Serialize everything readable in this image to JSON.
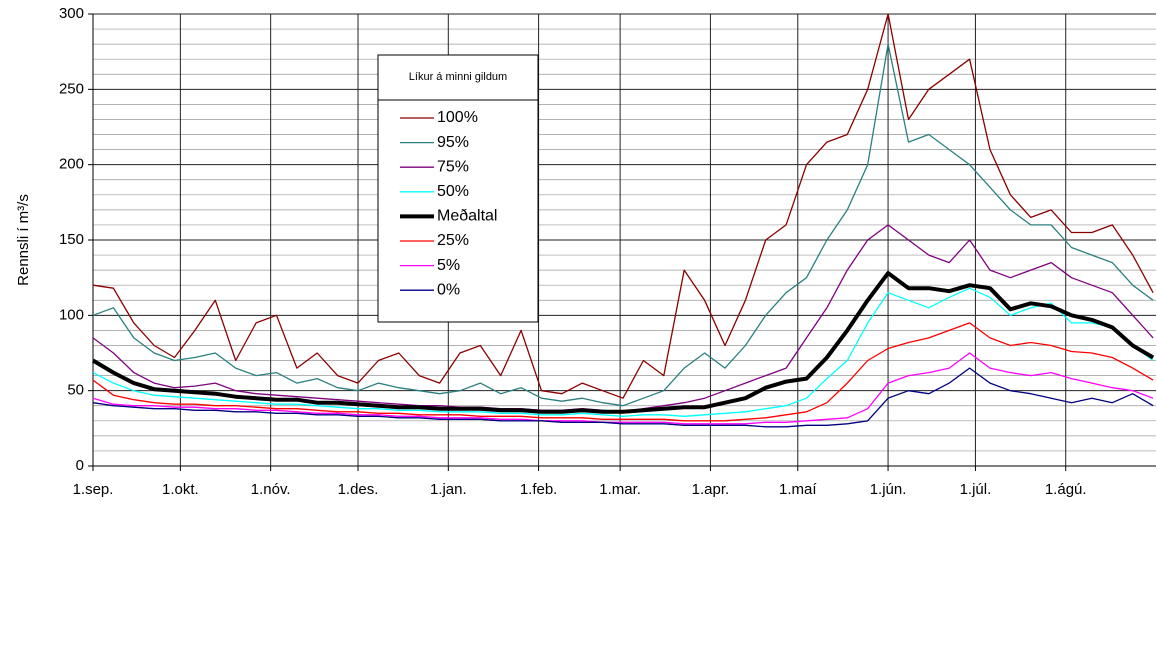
{
  "chart_data": {
    "type": "line",
    "y_label": "Rennsli í m³/s",
    "legend_title": "Líkur á minni gildum",
    "x": [
      0,
      7,
      14,
      21,
      28,
      35,
      42,
      49,
      56,
      63,
      70,
      77,
      84,
      91,
      98,
      105,
      112,
      119,
      126,
      133,
      140,
      147,
      154,
      161,
      168,
      175,
      182,
      189,
      196,
      203,
      210,
      217,
      224,
      231,
      238,
      245,
      252,
      259,
      266,
      273,
      280,
      287,
      294,
      301,
      308,
      315,
      322,
      329,
      336,
      343,
      350,
      357,
      364
    ],
    "xlim": [
      0,
      365
    ],
    "xticks": [
      {
        "value": 0,
        "label": "1.sep."
      },
      {
        "value": 30,
        "label": "1.okt."
      },
      {
        "value": 61,
        "label": "1.nóv."
      },
      {
        "value": 91,
        "label": "1.des."
      },
      {
        "value": 122,
        "label": "1.jan."
      },
      {
        "value": 153,
        "label": "1.feb."
      },
      {
        "value": 181,
        "label": "1.mar."
      },
      {
        "value": 212,
        "label": "1.apr."
      },
      {
        "value": 242,
        "label": "1.maí"
      },
      {
        "value": 273,
        "label": "1.jún."
      },
      {
        "value": 303,
        "label": "1.júl."
      },
      {
        "value": 334,
        "label": "1.ágú."
      }
    ],
    "ylim": [
      0,
      300
    ],
    "yticks": [
      0,
      50,
      100,
      150,
      200,
      250,
      300
    ],
    "yminorticks": [
      10,
      20,
      30,
      40,
      60,
      70,
      80,
      90,
      110,
      120,
      130,
      140,
      160,
      170,
      180,
      190,
      210,
      220,
      230,
      240,
      260,
      270,
      280,
      290
    ],
    "grid": true,
    "series": [
      {
        "name": "100%",
        "color": "#8b0000",
        "line_width": 1.3,
        "values": [
          120,
          118,
          95,
          80,
          72,
          90,
          110,
          70,
          95,
          100,
          65,
          75,
          60,
          55,
          70,
          75,
          60,
          55,
          75,
          80,
          60,
          90,
          50,
          48,
          55,
          50,
          45,
          70,
          60,
          130,
          110,
          80,
          110,
          150,
          160,
          200,
          215,
          220,
          250,
          300,
          230,
          250,
          260,
          270,
          210,
          180,
          165,
          170,
          155,
          155,
          160,
          140,
          115
        ]
      },
      {
        "name": "95%",
        "color": "#2a8080",
        "line_width": 1.3,
        "values": [
          100,
          105,
          85,
          75,
          70,
          72,
          75,
          65,
          60,
          62,
          55,
          58,
          52,
          50,
          55,
          52,
          50,
          48,
          50,
          55,
          48,
          52,
          45,
          43,
          45,
          42,
          40,
          45,
          50,
          65,
          75,
          65,
          80,
          100,
          115,
          125,
          150,
          170,
          200,
          280,
          215,
          220,
          210,
          200,
          185,
          170,
          160,
          160,
          145,
          140,
          135,
          120,
          110
        ]
      },
      {
        "name": "75%",
        "color": "#800080",
        "line_width": 1.3,
        "values": [
          85,
          75,
          62,
          55,
          52,
          53,
          55,
          50,
          48,
          47,
          46,
          45,
          44,
          43,
          42,
          41,
          40,
          40,
          39,
          39,
          38,
          38,
          37,
          37,
          38,
          37,
          36,
          38,
          40,
          42,
          45,
          50,
          55,
          60,
          65,
          85,
          105,
          130,
          150,
          160,
          150,
          140,
          135,
          150,
          130,
          125,
          130,
          135,
          125,
          120,
          115,
          100,
          85
        ]
      },
      {
        "name": "50%",
        "color": "#00ffff",
        "line_width": 1.3,
        "values": [
          62,
          55,
          50,
          47,
          46,
          45,
          44,
          43,
          42,
          41,
          41,
          40,
          39,
          38,
          38,
          37,
          37,
          36,
          36,
          36,
          35,
          35,
          34,
          34,
          35,
          34,
          33,
          34,
          34,
          33,
          34,
          35,
          36,
          38,
          40,
          45,
          58,
          70,
          95,
          115,
          110,
          105,
          112,
          118,
          112,
          100,
          105,
          108,
          95,
          95,
          92,
          80,
          70
        ]
      },
      {
        "name": "Meðaltal",
        "color": "#000000",
        "line_width": 4,
        "values": [
          70,
          62,
          55,
          51,
          50,
          49,
          48,
          46,
          45,
          44,
          44,
          42,
          42,
          41,
          40,
          39,
          39,
          38,
          38,
          38,
          37,
          37,
          36,
          36,
          37,
          36,
          36,
          37,
          38,
          39,
          39,
          42,
          45,
          52,
          56,
          58,
          72,
          90,
          110,
          128,
          118,
          118,
          116,
          120,
          118,
          104,
          108,
          106,
          100,
          97,
          92,
          80,
          72
        ]
      },
      {
        "name": "25%",
        "color": "#ff0000",
        "line_width": 1.3,
        "values": [
          57,
          47,
          44,
          42,
          41,
          41,
          40,
          40,
          39,
          38,
          38,
          37,
          36,
          36,
          35,
          35,
          34,
          34,
          34,
          33,
          33,
          33,
          32,
          32,
          32,
          31,
          31,
          31,
          31,
          30,
          30,
          30,
          31,
          32,
          34,
          36,
          42,
          55,
          70,
          78,
          82,
          85,
          90,
          95,
          85,
          80,
          82,
          80,
          76,
          75,
          72,
          65,
          57
        ]
      },
      {
        "name": "5%",
        "color": "#ff00ff",
        "line_width": 1.3,
        "values": [
          45,
          41,
          40,
          40,
          39,
          39,
          38,
          38,
          37,
          37,
          36,
          35,
          35,
          34,
          34,
          33,
          33,
          32,
          32,
          32,
          31,
          31,
          30,
          30,
          30,
          29,
          29,
          29,
          29,
          28,
          28,
          28,
          28,
          29,
          29,
          30,
          31,
          32,
          38,
          55,
          60,
          62,
          65,
          75,
          65,
          62,
          60,
          62,
          58,
          55,
          52,
          50,
          45
        ]
      },
      {
        "name": "0%",
        "color": "#000080",
        "line_width": 1.3,
        "values": [
          42,
          40,
          39,
          38,
          38,
          37,
          37,
          36,
          36,
          35,
          35,
          34,
          34,
          33,
          33,
          32,
          32,
          31,
          31,
          31,
          30,
          30,
          30,
          29,
          29,
          29,
          28,
          28,
          28,
          27,
          27,
          27,
          27,
          26,
          26,
          27,
          27,
          28,
          30,
          45,
          50,
          48,
          55,
          65,
          55,
          50,
          48,
          45,
          42,
          45,
          42,
          48,
          40
        ]
      }
    ]
  }
}
